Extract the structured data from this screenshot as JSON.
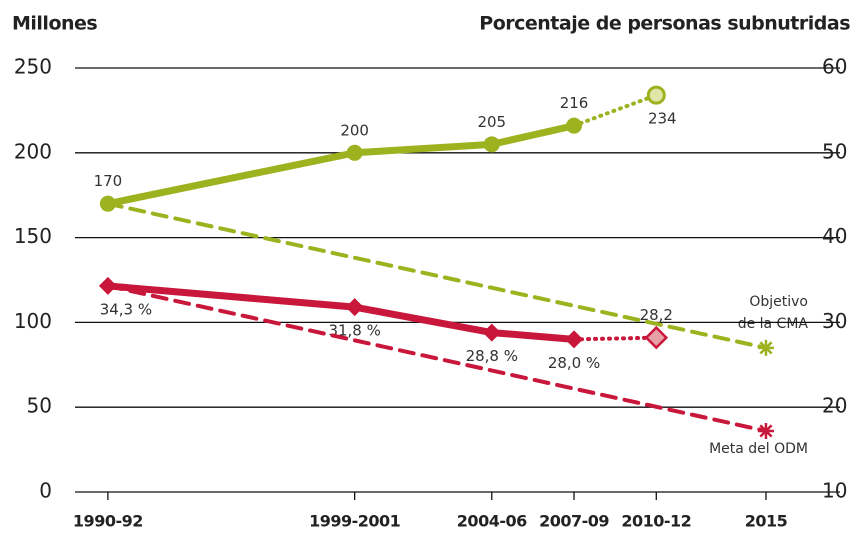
{
  "chart_data": {
    "type": "line",
    "y_title": "Millones",
    "y2_title": "Porcentaje de personas subnutridas",
    "x": [
      1991,
      2000,
      2005,
      2008,
      2011,
      2015
    ],
    "xlim": [
      1989.8,
      2017.7
    ],
    "xticks": [
      {
        "value": 1991,
        "label": "1990-92"
      },
      {
        "value": 2000,
        "label": "1999-2001"
      },
      {
        "value": 2005,
        "label": "2004-06"
      },
      {
        "value": 2008,
        "label": "2007-09"
      },
      {
        "value": 2011,
        "label": "2010-12"
      },
      {
        "value": 2015,
        "label": "2015"
      }
    ],
    "ylim": [
      0,
      250
    ],
    "yticks": [
      0,
      50,
      100,
      150,
      200,
      250
    ],
    "y2lim": [
      10,
      60
    ],
    "y2ticks": [
      10,
      20,
      30,
      40,
      50,
      60
    ],
    "grid": true,
    "series": [
      {
        "color": "#9db21f",
        "style": "solid",
        "marker": "circle",
        "label_pos": "above",
        "values": [
          170,
          200,
          205,
          216,
          null,
          null
        ]
      },
      {
        "color": "#9db21f",
        "style": "dotted",
        "marker": "open-circle",
        "marker_at": "end",
        "label_pos": "below",
        "values": [
          null,
          null,
          null,
          216,
          234,
          null
        ]
      },
      {
        "color": "#9db21f",
        "style": "dashed",
        "marker": "star",
        "marker_at": "end",
        "values": [
          170,
          null,
          null,
          null,
          null,
          85
        ]
      },
      {
        "color": "#c8173a",
        "style": "solid",
        "marker": "diamond",
        "label_pos": "below",
        "axis": "y2",
        "values": [
          34.3,
          31.8,
          28.8,
          28.0,
          null,
          null
        ],
        "value_labels": [
          "34,3 %",
          "31,8 %",
          "28,8 %",
          "28,0 %",
          null,
          null
        ]
      },
      {
        "color": "#c8173a",
        "style": "dotted",
        "marker": "open-diamond",
        "marker_at": "end",
        "label_pos": "above",
        "axis": "y2",
        "values": [
          null,
          null,
          null,
          28.0,
          28.2,
          null
        ],
        "value_labels": [
          null,
          null,
          null,
          null,
          "28,2",
          null
        ]
      },
      {
        "color": "#c8173a",
        "style": "dashed",
        "marker": "star",
        "marker_at": "end",
        "axis": "y2",
        "values": [
          34.3,
          null,
          null,
          null,
          null,
          17.2
        ]
      }
    ],
    "annotations": [
      "Objetivo",
      "de la CMA",
      "Meta del ODM"
    ]
  }
}
